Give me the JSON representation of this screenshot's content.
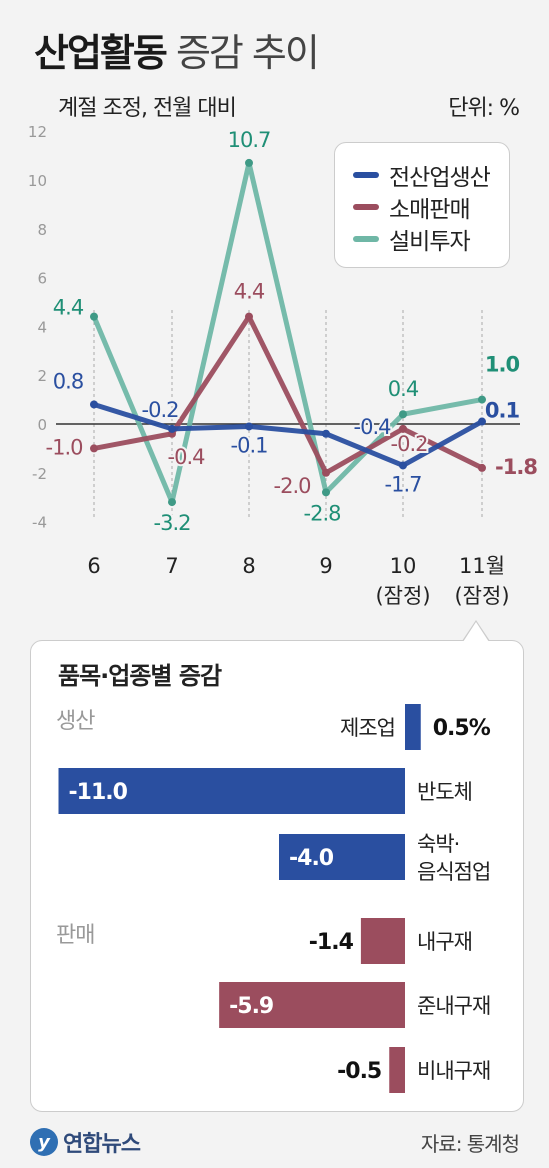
{
  "title": {
    "bold": "산업활동",
    "light": "증감 추이"
  },
  "subtitle": "계절 조정, 전월 대비",
  "unit": "단위: %",
  "footer": {
    "logo_mark": "y",
    "logo": "연합뉴스",
    "source": "자료: 통계청"
  },
  "panel_title": "품목·업종별 증감",
  "colors": {
    "production": "#2a4fa0",
    "sales": "#9b4d5e",
    "investment": "#6fb7a6",
    "investment_label": "#1f8f76",
    "zero_line": "#333333",
    "grid": "#aaaaaa"
  },
  "chart_data": [
    {
      "type": "line",
      "title": "",
      "categories": [
        [
          "6"
        ],
        [
          "7"
        ],
        [
          "8"
        ],
        [
          "9"
        ],
        [
          "10",
          "(잠정)"
        ],
        [
          "11월",
          "(잠정)"
        ]
      ],
      "ylim": [
        -4,
        12
      ],
      "yticks": [
        "12",
        "10",
        "8",
        "6",
        "4",
        "2",
        "0",
        "-2",
        "-4"
      ],
      "grid": "vertical dashed lines at categories",
      "legend": "top-right",
      "series": [
        {
          "name": "전산업생산",
          "color": "#2a4fa0",
          "values": [
            0.8,
            -0.2,
            -0.1,
            -0.4,
            -1.7,
            0.1
          ],
          "labels": [
            "0.8",
            "-0.2",
            "-0.1",
            "-0.4",
            "-1.7",
            "0.1"
          ]
        },
        {
          "name": "소매판매",
          "color": "#9b4d5e",
          "values": [
            -1.0,
            -0.4,
            4.4,
            -2.0,
            -0.2,
            -1.8
          ],
          "labels": [
            "-1.0",
            "-0.4",
            "4.4",
            "-2.0",
            "-0.2",
            "-1.8"
          ]
        },
        {
          "name": "설비투자",
          "color": "#6fb7a6",
          "label_color": "#1f8f76",
          "values": [
            4.4,
            -3.2,
            10.7,
            -2.8,
            0.4,
            1.0
          ],
          "labels": [
            "4.4",
            "-3.2",
            "10.7",
            "-2.8",
            "0.4",
            "1.0"
          ]
        }
      ]
    },
    {
      "type": "bar",
      "title": "품목·업종별 증감",
      "groups": [
        {
          "name": "생산",
          "color": "#2a4fa0",
          "items": [
            {
              "label": [
                "제조업"
              ],
              "value": 0.5,
              "value_label": "0.5%"
            },
            {
              "label": [
                "반도체"
              ],
              "value": -11.0,
              "value_label": "-11.0"
            },
            {
              "label": [
                "숙박·",
                "음식점업"
              ],
              "value": -4.0,
              "value_label": "-4.0"
            }
          ]
        },
        {
          "name": "판매",
          "color": "#9b4d5e",
          "items": [
            {
              "label": [
                "내구재"
              ],
              "value": -1.4,
              "value_label": "-1.4"
            },
            {
              "label": [
                "준내구재"
              ],
              "value": -5.9,
              "value_label": "-5.9"
            },
            {
              "label": [
                "비내구재"
              ],
              "value": -0.5,
              "value_label": "-0.5"
            }
          ]
        }
      ]
    }
  ]
}
